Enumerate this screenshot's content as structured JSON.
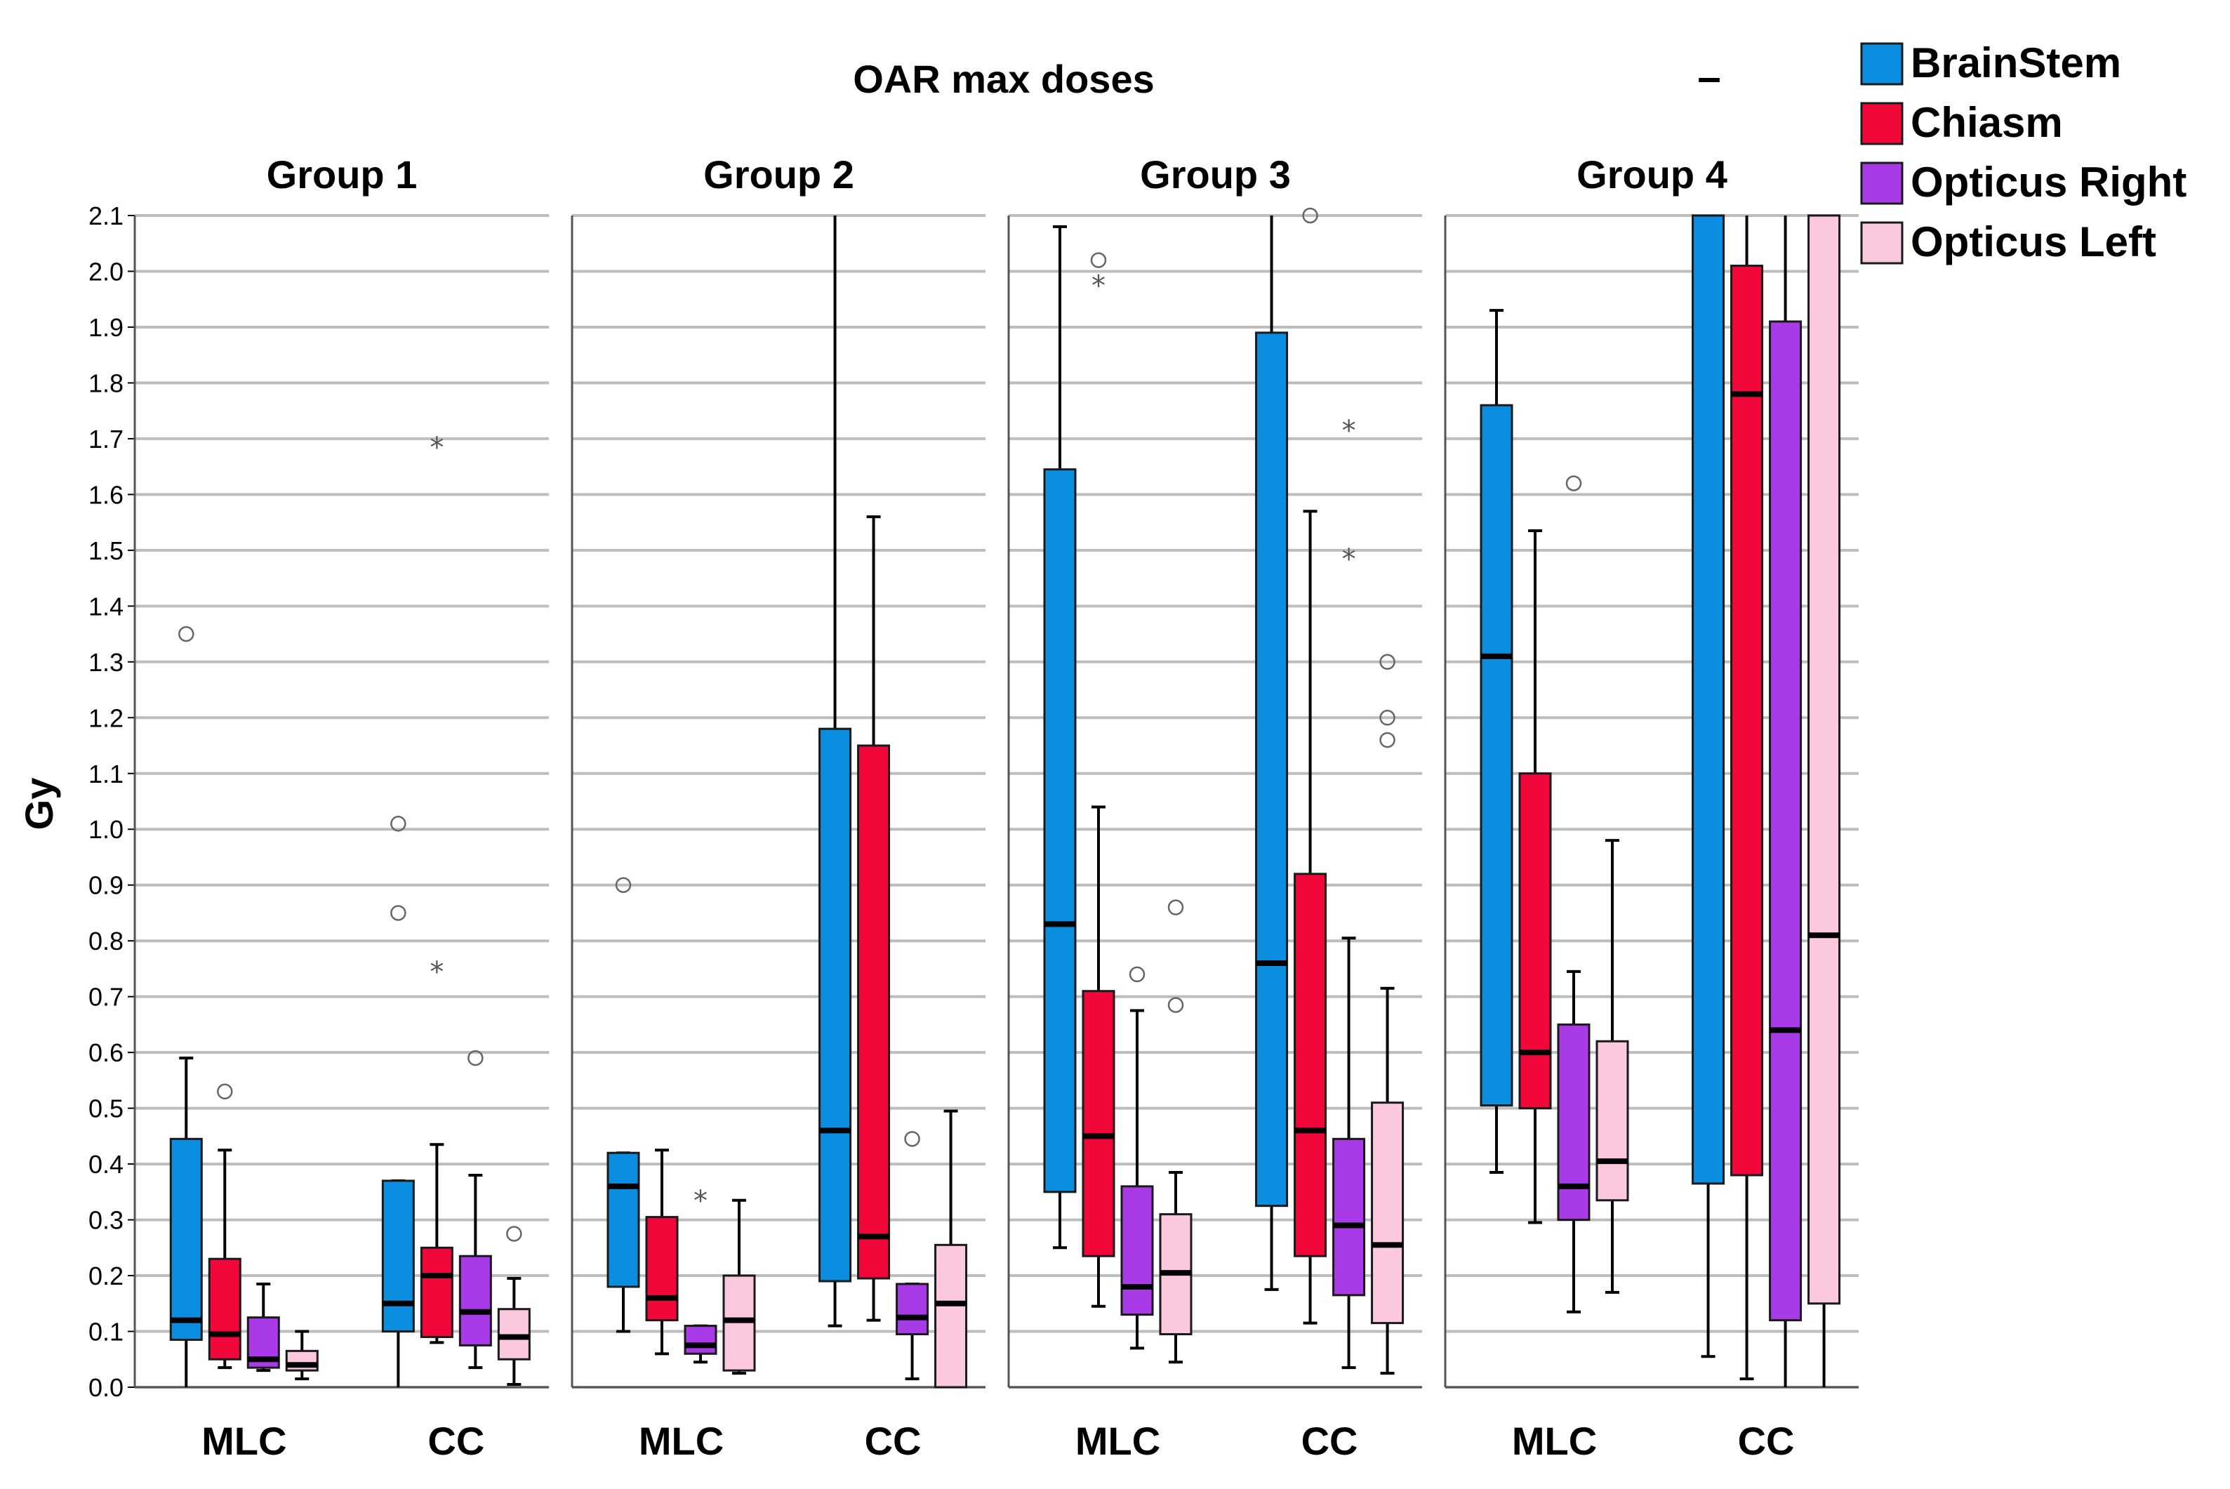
{
  "chart_data": {
    "type": "boxplot",
    "title": "OAR max doses",
    "ylabel": "Gy",
    "xlabel": "",
    "ylim": [
      0.0,
      2.1
    ],
    "yticks": [
      "0.0",
      "0.1",
      "0.2",
      "0.3",
      "0.4",
      "0.5",
      "0.6",
      "0.7",
      "0.8",
      "0.9",
      "1.0",
      "1.1",
      "1.2",
      "1.3",
      "1.4",
      "1.5",
      "1.6",
      "1.7",
      "1.8",
      "1.9",
      "2.0",
      "2.1"
    ],
    "grid": true,
    "legend_position": "top-right",
    "legend_extra_mark": "–",
    "series": [
      {
        "name": "BrainStem",
        "color": "#0b8ee0"
      },
      {
        "name": "Chiasm",
        "color": "#f2073a"
      },
      {
        "name": "Opticus Right",
        "color": "#a83ae8"
      },
      {
        "name": "Opticus Left",
        "color": "#fbc8df"
      }
    ],
    "categories": [
      "MLC",
      "CC"
    ],
    "panels": [
      {
        "title": "Group 1",
        "boxes": {
          "MLC": [
            {
              "q1": 0.085,
              "median": 0.12,
              "q3": 0.445,
              "min": 0.0,
              "max": 0.59,
              "outliers": [
                {
                  "v": 1.35,
                  "m": "o"
                }
              ]
            },
            {
              "q1": 0.05,
              "median": 0.095,
              "q3": 0.23,
              "min": 0.035,
              "max": 0.425,
              "outliers": [
                {
                  "v": 0.53,
                  "m": "o"
                }
              ]
            },
            {
              "q1": 0.035,
              "median": 0.05,
              "q3": 0.125,
              "min": 0.03,
              "max": 0.185,
              "outliers": []
            },
            {
              "q1": 0.03,
              "median": 0.04,
              "q3": 0.065,
              "min": 0.015,
              "max": 0.1,
              "outliers": []
            }
          ],
          "CC": [
            {
              "q1": 0.1,
              "median": 0.15,
              "q3": 0.37,
              "min": 0.0,
              "max": 0.37,
              "outliers": [
                {
                  "v": 1.01,
                  "m": "o"
                },
                {
                  "v": 0.85,
                  "m": "o"
                }
              ]
            },
            {
              "q1": 0.09,
              "median": 0.2,
              "q3": 0.25,
              "min": 0.08,
              "max": 0.435,
              "outliers": [
                {
                  "v": 1.69,
                  "m": "*"
                },
                {
                  "v": 0.75,
                  "m": "*"
                }
              ]
            },
            {
              "q1": 0.075,
              "median": 0.135,
              "q3": 0.235,
              "min": 0.035,
              "max": 0.38,
              "outliers": [
                {
                  "v": 0.59,
                  "m": "o"
                }
              ]
            },
            {
              "q1": 0.05,
              "median": 0.09,
              "q3": 0.14,
              "min": 0.005,
              "max": 0.195,
              "outliers": [
                {
                  "v": 0.275,
                  "m": "o"
                }
              ]
            }
          ]
        }
      },
      {
        "title": "Group 2",
        "boxes": {
          "MLC": [
            {
              "q1": 0.18,
              "median": 0.36,
              "q3": 0.42,
              "min": 0.1,
              "max": 0.42,
              "outliers": [
                {
                  "v": 0.9,
                  "m": "o"
                }
              ]
            },
            {
              "q1": 0.12,
              "median": 0.16,
              "q3": 0.305,
              "min": 0.06,
              "max": 0.425,
              "outliers": []
            },
            {
              "q1": 0.06,
              "median": 0.075,
              "q3": 0.11,
              "min": 0.045,
              "max": 0.11,
              "outliers": [
                {
                  "v": 0.34,
                  "m": "*"
                }
              ]
            },
            {
              "q1": 0.03,
              "median": 0.12,
              "q3": 0.2,
              "min": 0.025,
              "max": 0.335,
              "outliers": []
            }
          ],
          "CC": [
            {
              "q1": 0.19,
              "median": 0.46,
              "q3": 1.18,
              "min": 0.11,
              "max": 2.1,
              "outliers": []
            },
            {
              "q1": 0.195,
              "median": 0.27,
              "q3": 1.15,
              "min": 0.12,
              "max": 1.56,
              "outliers": []
            },
            {
              "q1": 0.095,
              "median": 0.125,
              "q3": 0.185,
              "min": 0.015,
              "max": 0.185,
              "outliers": [
                {
                  "v": 0.445,
                  "m": "o"
                }
              ]
            },
            {
              "q1": 0.0,
              "median": 0.15,
              "q3": 0.255,
              "min": 0.0,
              "max": 0.495,
              "outliers": []
            }
          ]
        }
      },
      {
        "title": "Group 3",
        "boxes": {
          "MLC": [
            {
              "q1": 0.35,
              "median": 0.83,
              "q3": 1.645,
              "min": 0.25,
              "max": 2.08,
              "outliers": []
            },
            {
              "q1": 0.235,
              "median": 0.45,
              "q3": 0.71,
              "min": 0.145,
              "max": 1.04,
              "outliers": [
                {
                  "v": 2.02,
                  "m": "o"
                },
                {
                  "v": 1.98,
                  "m": "*"
                }
              ]
            },
            {
              "q1": 0.13,
              "median": 0.18,
              "q3": 0.36,
              "min": 0.07,
              "max": 0.675,
              "outliers": [
                {
                  "v": 0.74,
                  "m": "o"
                }
              ]
            },
            {
              "q1": 0.095,
              "median": 0.205,
              "q3": 0.31,
              "min": 0.045,
              "max": 0.385,
              "outliers": [
                {
                  "v": 0.86,
                  "m": "o"
                },
                {
                  "v": 0.685,
                  "m": "o"
                }
              ]
            }
          ],
          "CC": [
            {
              "q1": 0.325,
              "median": 0.76,
              "q3": 1.89,
              "min": 0.175,
              "max": 2.1,
              "outliers": []
            },
            {
              "q1": 0.235,
              "median": 0.46,
              "q3": 0.92,
              "min": 0.115,
              "max": 1.57,
              "outliers": [
                {
                  "v": 2.1,
                  "m": "o"
                }
              ]
            },
            {
              "q1": 0.165,
              "median": 0.29,
              "q3": 0.445,
              "min": 0.035,
              "max": 0.805,
              "outliers": [
                {
                  "v": 1.72,
                  "m": "*"
                },
                {
                  "v": 1.49,
                  "m": "*"
                }
              ]
            },
            {
              "q1": 0.115,
              "median": 0.255,
              "q3": 0.51,
              "min": 0.025,
              "max": 0.715,
              "outliers": [
                {
                  "v": 1.3,
                  "m": "o"
                },
                {
                  "v": 1.2,
                  "m": "o"
                },
                {
                  "v": 1.16,
                  "m": "o"
                }
              ]
            }
          ]
        }
      },
      {
        "title": "Group 4",
        "boxes": {
          "MLC": [
            {
              "q1": 0.505,
              "median": 1.31,
              "q3": 1.76,
              "min": 0.385,
              "max": 1.93,
              "outliers": []
            },
            {
              "q1": 0.5,
              "median": 0.6,
              "q3": 1.1,
              "min": 0.295,
              "max": 1.535,
              "outliers": []
            },
            {
              "q1": 0.3,
              "median": 0.36,
              "q3": 0.65,
              "min": 0.135,
              "max": 0.745,
              "outliers": [
                {
                  "v": 1.62,
                  "m": "o"
                }
              ]
            },
            {
              "q1": 0.335,
              "median": 0.405,
              "q3": 0.62,
              "min": 0.17,
              "max": 0.98,
              "outliers": []
            }
          ],
          "CC": [
            {
              "q1": 0.365,
              "median": null,
              "q3": 2.1,
              "min": 0.055,
              "max": 2.1,
              "outliers": []
            },
            {
              "q1": 0.38,
              "median": 1.78,
              "q3": 2.01,
              "min": 0.015,
              "max": 2.1,
              "outliers": []
            },
            {
              "q1": 0.12,
              "median": 0.64,
              "q3": 1.91,
              "min": 0.0,
              "max": 2.1,
              "outliers": []
            },
            {
              "q1": 0.15,
              "median": 0.81,
              "q3": 2.1,
              "min": 0.0,
              "max": 2.1,
              "outliers": []
            }
          ]
        }
      }
    ]
  }
}
